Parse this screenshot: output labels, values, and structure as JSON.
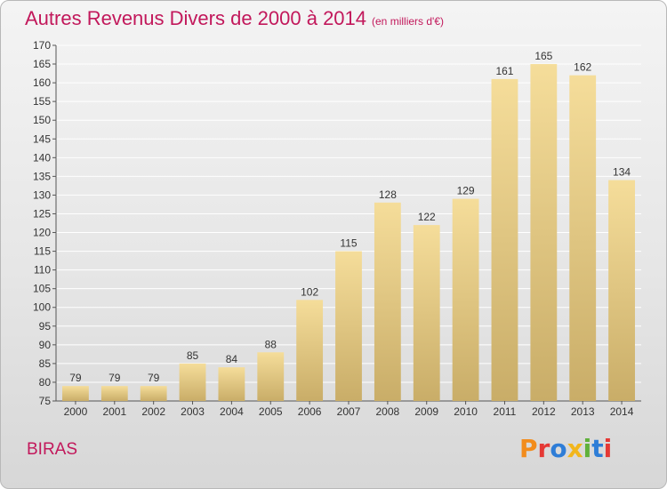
{
  "header": {
    "title": "Autres Revenus Divers de 2000 à 2014",
    "unit": "(en milliers d'€)"
  },
  "footer": {
    "place": "BIRAS",
    "logo": "Proxiti"
  },
  "colors": {
    "title": "#c2185b",
    "bar_light": "#f5dd9a",
    "bar_dark": "#c9ad68",
    "grid": "#ffffff",
    "logo_letters": [
      "#f28c1c",
      "#e53935",
      "#2e7dd7",
      "#f2b61c",
      "#5fb13b",
      "#2e7dd7",
      "#e53935"
    ]
  },
  "chart_data": {
    "type": "bar",
    "title": "Autres Revenus Divers de 2000 à 2014",
    "xlabel": "",
    "ylabel": "",
    "categories": [
      "2000",
      "2001",
      "2002",
      "2003",
      "2004",
      "2005",
      "2006",
      "2007",
      "2008",
      "2009",
      "2010",
      "2011",
      "2012",
      "2013",
      "2014"
    ],
    "values": [
      79,
      79,
      79,
      85,
      84,
      88,
      102,
      115,
      128,
      122,
      129,
      161,
      165,
      162,
      134
    ],
    "ylim": [
      75,
      170
    ],
    "ytick_step": 5,
    "grid": true,
    "data_labels": true
  }
}
